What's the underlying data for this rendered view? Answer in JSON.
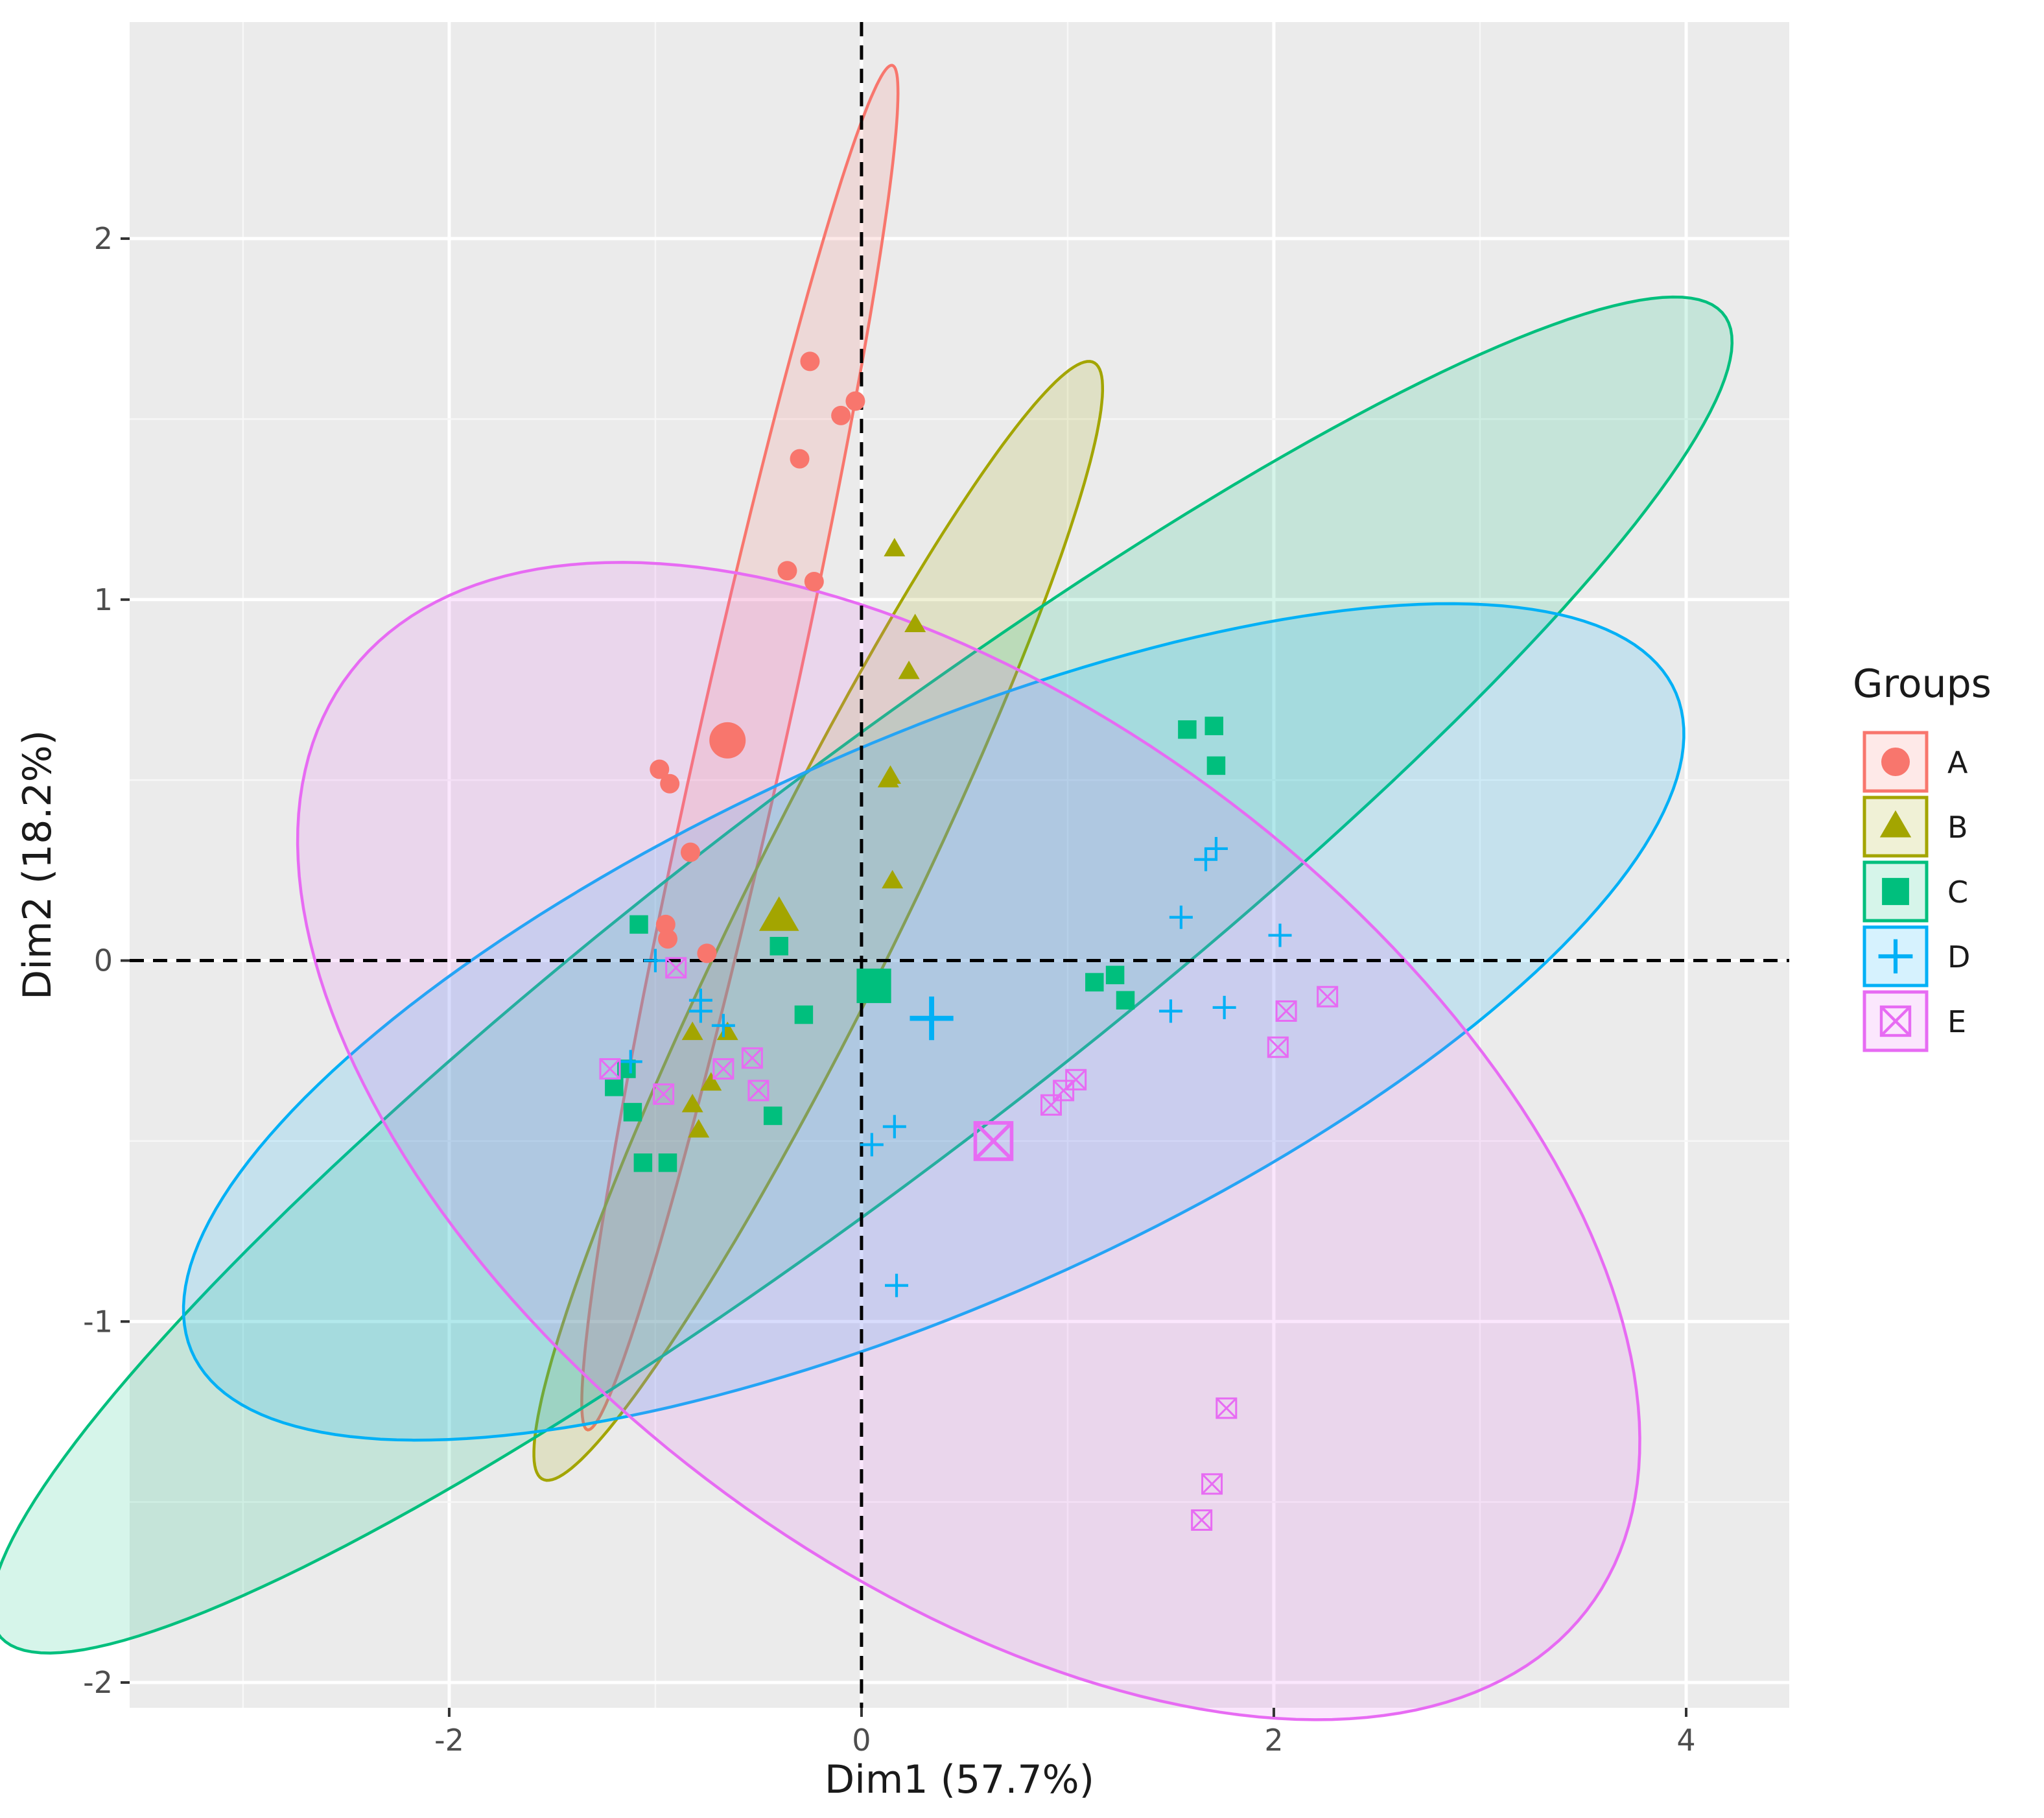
{
  "chart_data": {
    "type": "scatter",
    "title": "",
    "xlabel": "Dim1 (57.7%)",
    "ylabel": "Dim2 (18.2%)",
    "xlim": [
      -3.55,
      4.5
    ],
    "ylim": [
      -2.07,
      2.6
    ],
    "xticks": [
      -2,
      0,
      2,
      4
    ],
    "yticks": [
      -2,
      -1,
      0,
      1,
      2
    ],
    "xtick_labels": [
      "-2",
      "0",
      "2",
      "4"
    ],
    "ytick_labels": [
      "-2",
      "-1",
      "0",
      "1",
      "2"
    ],
    "grid": true,
    "reference_lines": {
      "x": 0,
      "y": 0,
      "style": "dashed"
    },
    "legend": {
      "title": "Groups",
      "position": "right"
    },
    "series": [
      {
        "name": "A",
        "marker": "circle",
        "color": "#F8766D",
        "centroid": [
          -0.65,
          0.61
        ],
        "ellipse": {
          "center": [
            -0.59,
            0.59
          ],
          "rx": 2.03,
          "ry": 0.2,
          "angle_deg": 68.5
        },
        "points": [
          [
            -0.25,
            1.66
          ],
          [
            -0.03,
            1.55
          ],
          [
            -0.1,
            1.51
          ],
          [
            -0.3,
            1.39
          ],
          [
            -0.36,
            1.08
          ],
          [
            -0.23,
            1.05
          ],
          [
            -0.98,
            0.53
          ],
          [
            -0.93,
            0.49
          ],
          [
            -0.83,
            0.3
          ],
          [
            -0.95,
            0.1
          ],
          [
            -0.94,
            0.06
          ],
          [
            -0.75,
            0.02
          ]
        ]
      },
      {
        "name": "B",
        "marker": "triangle",
        "color": "#A3A500",
        "centroid": [
          -0.4,
          0.12
        ],
        "ellipse": {
          "center": [
            -0.21,
            0.11
          ],
          "rx": 2.05,
          "ry": 0.32,
          "angle_deg": 48.5
        },
        "points": [
          [
            0.16,
            1.14
          ],
          [
            0.26,
            0.93
          ],
          [
            0.23,
            0.8
          ],
          [
            0.14,
            0.51
          ],
          [
            0.13,
            0.5
          ],
          [
            0.15,
            0.22
          ],
          [
            -0.82,
            -0.2
          ],
          [
            -0.65,
            -0.2
          ],
          [
            -0.73,
            -0.34
          ],
          [
            -0.82,
            -0.4
          ],
          [
            -0.79,
            -0.47
          ]
        ]
      },
      {
        "name": "C",
        "marker": "square",
        "color": "#00BF7D",
        "centroid": [
          0.06,
          -0.07
        ],
        "ellipse": {
          "center": [
            0.0,
            -0.04
          ],
          "rx": 4.58,
          "ry": 0.62,
          "angle_deg": 23.0
        },
        "points": [
          [
            1.58,
            0.64
          ],
          [
            1.71,
            0.65
          ],
          [
            1.72,
            0.54
          ],
          [
            -1.08,
            0.1
          ],
          [
            -0.4,
            0.04
          ],
          [
            -0.28,
            -0.15
          ],
          [
            1.13,
            -0.06
          ],
          [
            1.23,
            -0.04
          ],
          [
            1.28,
            -0.11
          ],
          [
            -1.2,
            -0.35
          ],
          [
            -1.11,
            -0.42
          ],
          [
            -0.43,
            -0.43
          ],
          [
            -1.06,
            -0.56
          ],
          [
            -0.94,
            -0.56
          ],
          [
            -1.14,
            -0.3
          ]
        ]
      },
      {
        "name": "D",
        "marker": "plus",
        "color": "#00B0F6",
        "centroid": [
          0.34,
          -0.16
        ],
        "ellipse": {
          "center": [
            0.35,
            -0.17
          ],
          "rx": 3.73,
          "ry": 0.82,
          "angle_deg": 13.0
        },
        "points": [
          [
            1.72,
            0.31
          ],
          [
            1.67,
            0.28
          ],
          [
            1.55,
            0.12
          ],
          [
            2.03,
            0.07
          ],
          [
            1.5,
            -0.14
          ],
          [
            1.76,
            -0.13
          ],
          [
            -0.78,
            -0.11
          ],
          [
            -0.78,
            -0.14
          ],
          [
            -0.67,
            -0.18
          ],
          [
            -1.0,
            0.0
          ],
          [
            -1.12,
            -0.28
          ],
          [
            0.16,
            -0.46
          ],
          [
            0.05,
            -0.51
          ],
          [
            0.17,
            -0.9
          ]
        ]
      },
      {
        "name": "E",
        "marker": "square-cross",
        "color": "#E76BF3",
        "centroid": [
          0.64,
          -0.5
        ],
        "ellipse": {
          "center": [
            0.52,
            -0.5
          ],
          "rx": 3.38,
          "ry": 1.32,
          "angle_deg": -17.0
        },
        "points": [
          [
            -0.9,
            -0.02
          ],
          [
            1.77,
            -1.24
          ],
          [
            1.7,
            -1.45
          ],
          [
            1.65,
            -1.55
          ],
          [
            2.02,
            -0.24
          ],
          [
            2.06,
            -0.14
          ],
          [
            2.26,
            -0.1
          ],
          [
            1.04,
            -0.33
          ],
          [
            0.98,
            -0.36
          ],
          [
            0.92,
            -0.4
          ],
          [
            -1.22,
            -0.3
          ],
          [
            -0.96,
            -0.37
          ],
          [
            -0.67,
            -0.3
          ],
          [
            -0.53,
            -0.27
          ],
          [
            -0.5,
            -0.36
          ]
        ]
      }
    ]
  }
}
